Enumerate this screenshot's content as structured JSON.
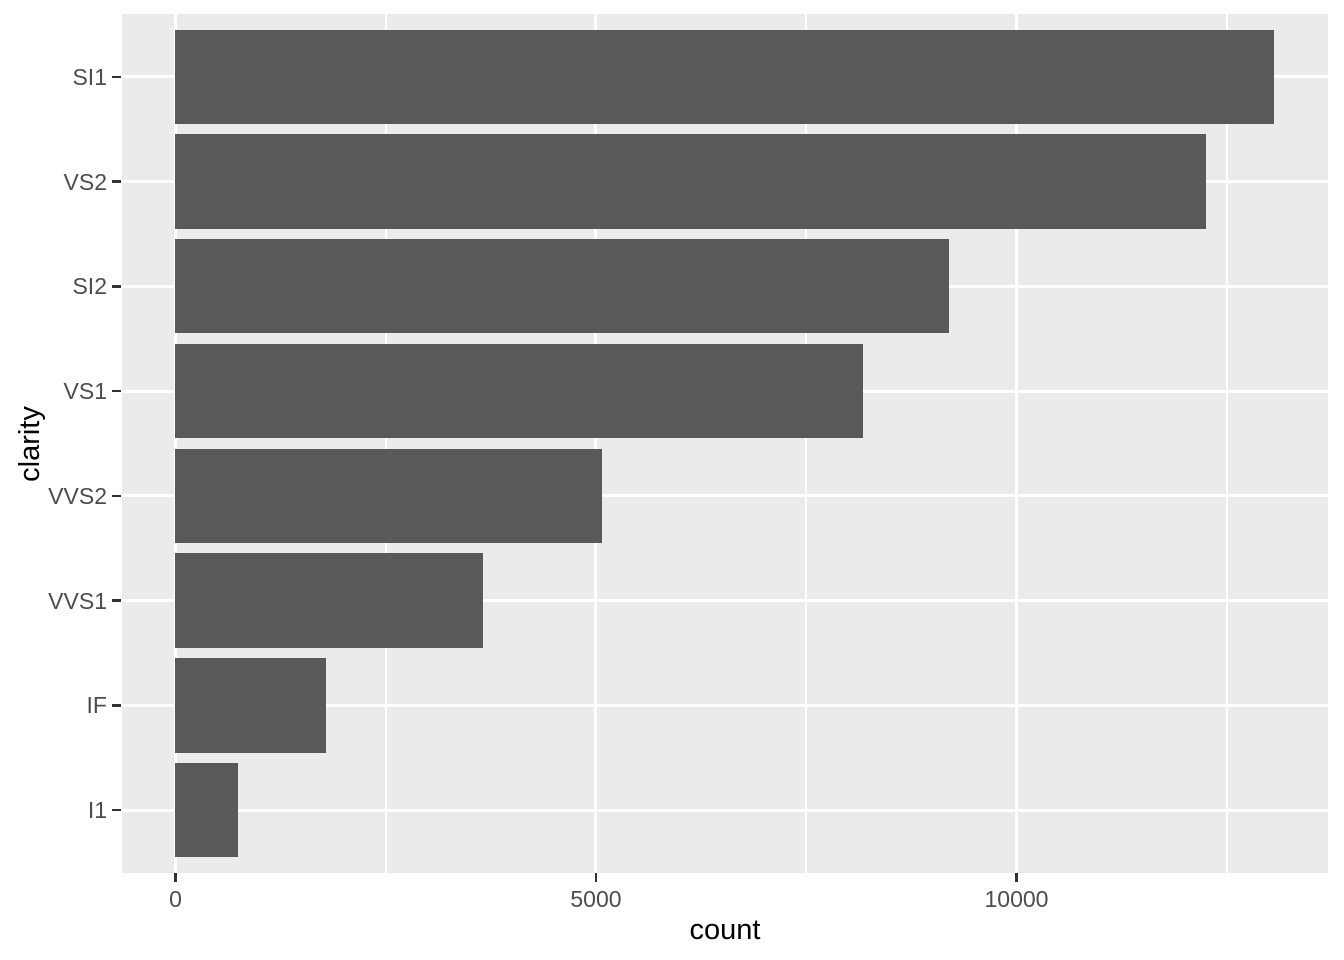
{
  "chart_data": {
    "type": "bar",
    "orientation": "horizontal",
    "title": "",
    "xlabel": "count",
    "ylabel": "clarity",
    "categories": [
      "SI1",
      "VS2",
      "SI2",
      "VS1",
      "VVS2",
      "VVS1",
      "IF",
      "I1"
    ],
    "values": [
      13065,
      12258,
      9194,
      8171,
      5066,
      3655,
      1790,
      741
    ],
    "xlim": [
      -636,
      13704
    ],
    "x_major_ticks": [
      {
        "value": 0,
        "label": "0"
      },
      {
        "value": 5000,
        "label": "5000"
      },
      {
        "value": 10000,
        "label": "10000"
      }
    ],
    "x_minor_ticks": [
      2500,
      7500,
      12500
    ],
    "bar_rel_width": 0.9,
    "y_expansion": 0.6,
    "grid": true,
    "legend": "none",
    "colors": {
      "bar_fill": "#595959",
      "panel_bg": "#EBEBEB",
      "grid_major": "#FFFFFF",
      "grid_minor": "#FFFFFF",
      "axis_text": "#4D4D4D",
      "axis_title": "#000000",
      "tick_mark": "#333333",
      "figure_bg": "#FFFFFF"
    }
  }
}
